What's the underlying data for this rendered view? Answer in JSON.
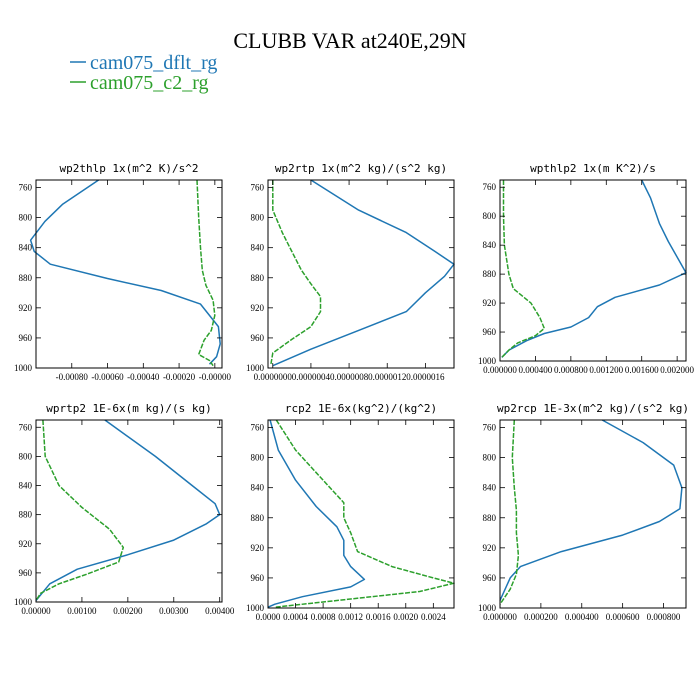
{
  "figure": {
    "title": "CLUBB VAR at240E,29N",
    "legend": [
      {
        "label": "cam075_dflt_rg",
        "color": "#1f77b4"
      },
      {
        "label": "cam075_c2_rg",
        "color": "#2ca02c"
      }
    ]
  },
  "chart_data": [
    {
      "type": "line",
      "title": "wp2thlp   1x(m^2 K)/s^2",
      "xlim": [
        -0.001,
        4e-05
      ],
      "ylim": [
        1000,
        750
      ],
      "yticks": [
        760,
        800,
        840,
        880,
        920,
        960,
        1000
      ],
      "xticks": [
        -0.0008,
        -0.0006,
        -0.0004,
        -0.0002,
        0.0
      ],
      "xtick_labels": [
        "-0.00080",
        "-0.00060",
        "-0.00040",
        "-0.00020",
        "-0.00000"
      ],
      "series": [
        {
          "name": "cam075_dflt_rg",
          "color": "#1f77b4",
          "x": [
            -0.00065,
            -0.00085,
            -0.00095,
            -0.00103,
            -0.00101,
            -0.00092,
            -0.0006,
            -0.0003,
            -8e-05,
            2e-05,
            3e-05,
            1e-05,
            -3e-05
          ],
          "y": [
            750,
            782,
            805,
            830,
            845,
            862,
            881,
            897,
            915,
            945,
            968,
            985,
            995
          ]
        },
        {
          "name": "cam075_c2_rg",
          "color": "#2ca02c",
          "x": [
            -0.0001,
            -9e-05,
            -8e-05,
            -7e-05,
            -5e-05,
            -1e-05,
            0.0,
            -2e-05,
            -6e-05,
            -9e-05,
            -3e-05,
            -1e-05
          ],
          "y": [
            750,
            800,
            840,
            870,
            890,
            910,
            930,
            950,
            963,
            982,
            990,
            997
          ]
        }
      ]
    },
    {
      "type": "line",
      "title": "wp2rtp  1x(m^2 kg)/(s^2 kg)",
      "xlim": [
        -5e-08,
        1.9e-06
      ],
      "ylim": [
        1000,
        750
      ],
      "yticks": [
        760,
        800,
        840,
        880,
        920,
        960,
        1000
      ],
      "xticks": [
        0.0,
        4e-07,
        8e-07,
        1.2e-06,
        1.6e-06
      ],
      "xtick_labels": [
        "0.0000000",
        "0.0000004",
        "0.0000008",
        "0.0000012",
        "0.0000016"
      ],
      "series": [
        {
          "name": "cam075_dflt_rg",
          "color": "#1f77b4",
          "x": [
            4e-07,
            9e-07,
            1.4e-06,
            1.7e-06,
            1.9e-06,
            1.8e-06,
            1.6e-06,
            1.4e-06,
            9e-07,
            4e-07,
            0.0
          ],
          "y": [
            750,
            790,
            820,
            845,
            862,
            878,
            900,
            925,
            950,
            975,
            997
          ]
        },
        {
          "name": "cam075_c2_rg",
          "color": "#2ca02c",
          "x": [
            0.0,
            0.0,
            1e-07,
            2e-07,
            3e-07,
            4e-07,
            5e-07,
            5e-07,
            4e-07,
            2e-07,
            0.0,
            -2e-08
          ],
          "y": [
            750,
            790,
            820,
            845,
            870,
            888,
            905,
            925,
            945,
            962,
            980,
            995
          ]
        }
      ]
    },
    {
      "type": "line",
      "title": "wpthlp2  1x(m K^2)/s",
      "xlim": [
        0.0,
        0.0021
      ],
      "ylim": [
        1000,
        750
      ],
      "yticks": [
        760,
        800,
        840,
        880,
        920,
        960,
        1000
      ],
      "xticks": [
        0.0,
        0.0004,
        0.0008,
        0.0012,
        0.0016,
        0.002
      ],
      "xtick_labels": [
        "0.000000",
        "0.000400",
        "0.000800",
        "0.001200",
        "0.001600",
        "0.002000"
      ],
      "series": [
        {
          "name": "cam075_dflt_rg",
          "color": "#1f77b4",
          "x": [
            0.0016,
            0.0017,
            0.0018,
            0.0019,
            0.0021,
            0.0018,
            0.0013,
            0.0011,
            0.001,
            0.0008,
            0.0005,
            0.0003,
            0.0001,
            2e-05
          ],
          "y": [
            750,
            775,
            810,
            835,
            878,
            895,
            912,
            925,
            940,
            953,
            962,
            972,
            985,
            995
          ]
        },
        {
          "name": "cam075_c2_rg",
          "color": "#2ca02c",
          "x": [
            4e-05,
            4e-05,
            5e-05,
            0.0001,
            0.00015,
            0.00035,
            0.00045,
            0.0005,
            0.0004,
            0.0002,
            0.0001,
            2e-05
          ],
          "y": [
            750,
            800,
            840,
            880,
            900,
            920,
            940,
            955,
            965,
            975,
            985,
            995
          ]
        }
      ]
    },
    {
      "type": "line",
      "title": "wprtp2  1E-6x(m kg)/(s kg)",
      "xlim": [
        0.0,
        0.00405
      ],
      "ylim": [
        1000,
        750
      ],
      "yticks": [
        760,
        800,
        840,
        880,
        920,
        960,
        1000
      ],
      "xticks": [
        0.0,
        0.001,
        0.002,
        0.003,
        0.004
      ],
      "xtick_labels": [
        "0.00000",
        "0.00100",
        "0.00200",
        "0.00300",
        "0.00400"
      ],
      "series": [
        {
          "name": "cam075_dflt_rg",
          "color": "#1f77b4",
          "x": [
            0.0015,
            0.0026,
            0.0034,
            0.0039,
            0.004,
            0.0037,
            0.003,
            0.002,
            0.0009,
            0.0003,
            0.0
          ],
          "y": [
            750,
            800,
            840,
            865,
            880,
            893,
            915,
            935,
            955,
            975,
            998
          ]
        },
        {
          "name": "cam075_c2_rg",
          "color": "#2ca02c",
          "x": [
            0.00015,
            0.0002,
            0.0005,
            0.001,
            0.0016,
            0.0019,
            0.0018,
            0.0011,
            0.0005,
            0.0001,
            0.0
          ],
          "y": [
            750,
            800,
            840,
            870,
            900,
            925,
            945,
            962,
            975,
            988,
            998
          ]
        }
      ]
    },
    {
      "type": "line",
      "title": "rcp2  1E-6x(kg^2)/(kg^2)",
      "xlim": [
        0.0,
        0.0027
      ],
      "ylim": [
        1000,
        750
      ],
      "yticks": [
        760,
        800,
        840,
        880,
        920,
        960,
        1000
      ],
      "xticks": [
        0.0,
        0.0004,
        0.0008,
        0.0012,
        0.0016,
        0.002,
        0.0024
      ],
      "xtick_labels": [
        "0.0000",
        "0.0004",
        "0.0008",
        "0.0012",
        "0.0016",
        "0.0020",
        "0.0024"
      ],
      "series": [
        {
          "name": "cam075_dflt_rg",
          "color": "#1f77b4",
          "x": [
            3e-05,
            0.00015,
            0.0004,
            0.0007,
            0.001,
            0.0011,
            0.0011,
            0.0012,
            0.0014,
            0.0012,
            0.0005,
            0.0001,
            0.0
          ],
          "y": [
            750,
            790,
            830,
            865,
            892,
            910,
            930,
            945,
            962,
            972,
            985,
            995,
            999
          ]
        },
        {
          "name": "cam075_c2_rg",
          "color": "#2ca02c",
          "x": [
            0.00012,
            0.0004,
            0.0008,
            0.0011,
            0.0011,
            0.0012,
            0.0013,
            0.0018,
            0.0024,
            0.0027,
            0.0022,
            0.001,
            0.0001
          ],
          "y": [
            750,
            790,
            830,
            860,
            880,
            900,
            925,
            945,
            960,
            967,
            978,
            990,
            999
          ]
        }
      ]
    },
    {
      "type": "line",
      "title": "wp2rcp  1E-3x(m^2 kg)/(s^2 kg)",
      "xlim": [
        0.0,
        0.00091
      ],
      "ylim": [
        1000,
        750
      ],
      "yticks": [
        760,
        800,
        840,
        880,
        920,
        960,
        1000
      ],
      "xticks": [
        0.0,
        0.0002,
        0.0004,
        0.0006,
        0.0008
      ],
      "xtick_labels": [
        "0.000000",
        "0.000200",
        "0.000400",
        "0.000600",
        "0.000800"
      ],
      "series": [
        {
          "name": "cam075_dflt_rg",
          "color": "#1f77b4",
          "x": [
            0.0005,
            0.0007,
            0.00085,
            0.00089,
            0.00088,
            0.00078,
            0.0006,
            0.0003,
            0.0001,
            5e-05,
            0.0
          ],
          "y": [
            750,
            780,
            810,
            840,
            868,
            885,
            903,
            925,
            945,
            960,
            990
          ]
        },
        {
          "name": "cam075_c2_rg",
          "color": "#2ca02c",
          "x": [
            7e-05,
            6e-05,
            7e-05,
            8e-05,
            8e-05,
            9e-05,
            8e-05,
            5e-05,
            0.0
          ],
          "y": [
            750,
            800,
            840,
            870,
            900,
            930,
            955,
            975,
            995
          ]
        }
      ]
    }
  ]
}
